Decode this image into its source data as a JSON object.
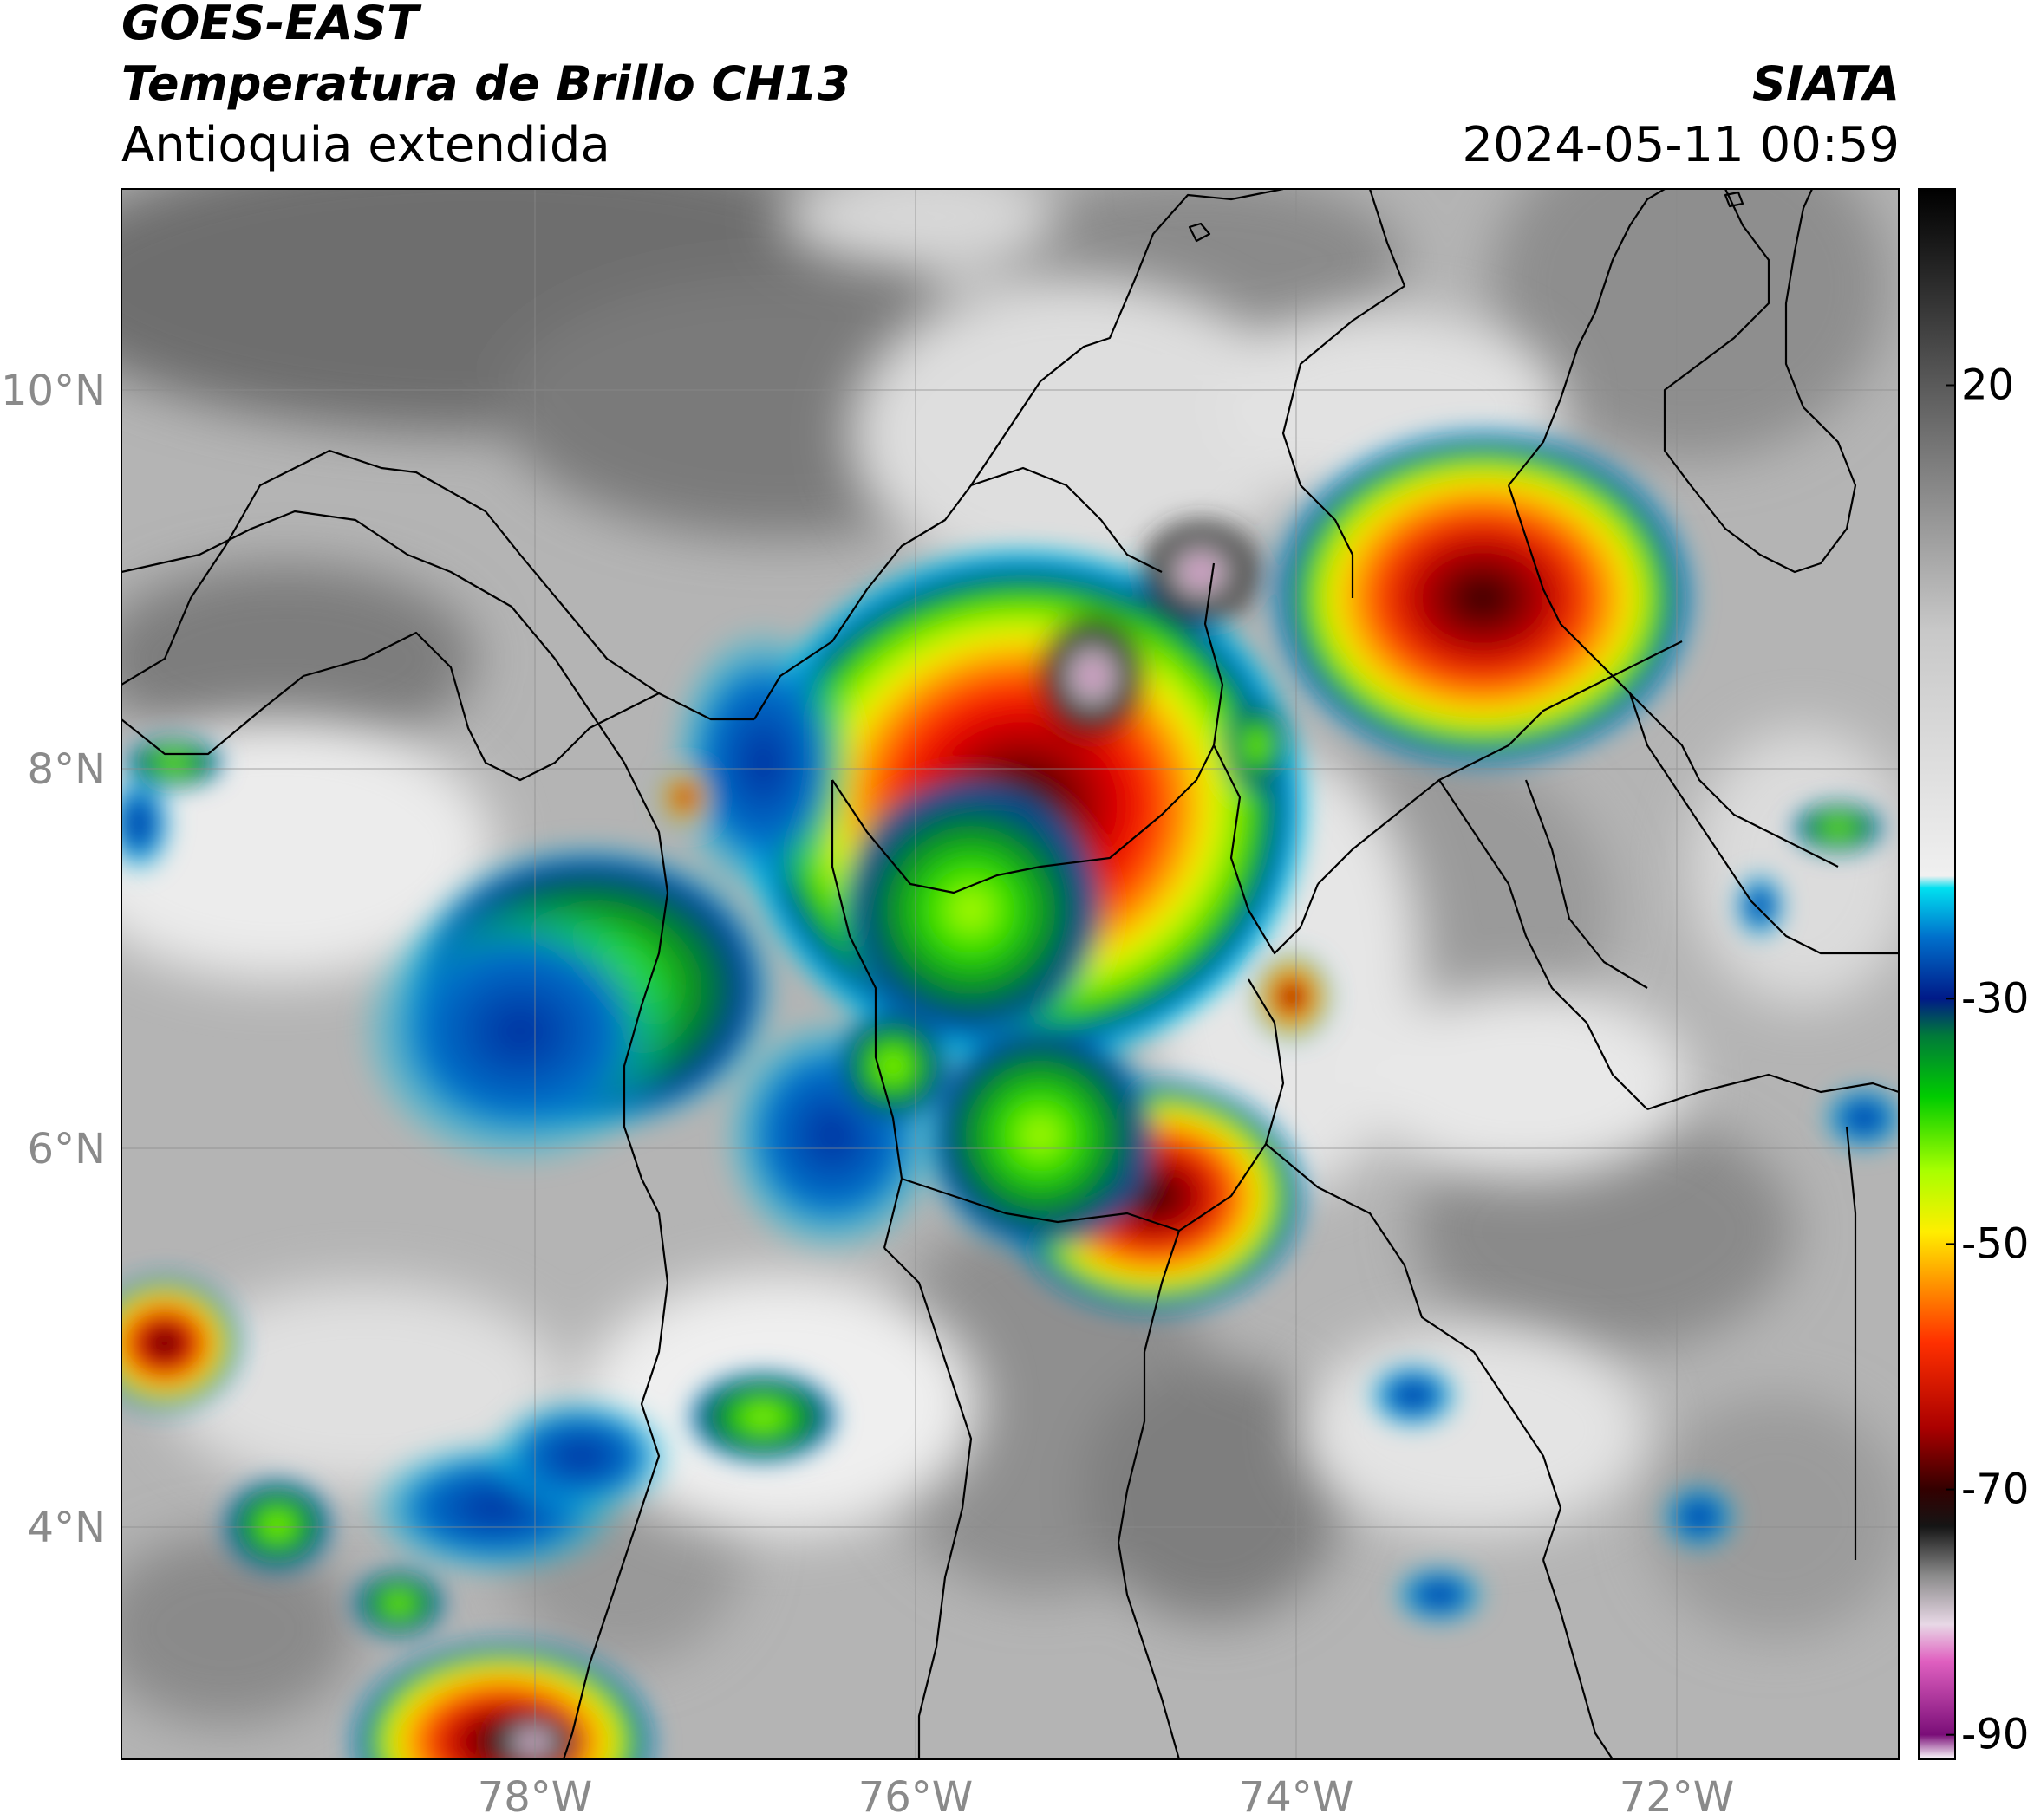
{
  "header": {
    "satellite": "GOES-EAST",
    "product": "Temperatura de Brillo CH13",
    "region": "Antioquia extendida",
    "brand": "SIATA",
    "datetime": "2024-05-11 00:59"
  },
  "map": {
    "lat_labels": [
      "10°N",
      "8°N",
      "6°N",
      "4°N"
    ],
    "lon_labels": [
      "78°W",
      "76°W",
      "74°W",
      "72°W"
    ],
    "lat_range": [
      2.6,
      11.1
    ],
    "lon_range": [
      -80.2,
      -70.85
    ]
  },
  "colorbar": {
    "ticks": [
      "20",
      "-30",
      "-50",
      "-70",
      "-90"
    ],
    "range": [
      -92,
      36
    ],
    "stops": [
      {
        "t": -92,
        "color": "#ffffff"
      },
      {
        "t": -90,
        "color": "#7a0e78"
      },
      {
        "t": -84,
        "color": "#e060c0"
      },
      {
        "t": -81,
        "color": "#e8d8e6"
      },
      {
        "t": -77,
        "color": "#8a8a8a"
      },
      {
        "t": -73,
        "color": "#151515"
      },
      {
        "t": -70,
        "color": "#330000"
      },
      {
        "t": -65,
        "color": "#aa0000"
      },
      {
        "t": -58,
        "color": "#ff3000"
      },
      {
        "t": -53,
        "color": "#ff9900"
      },
      {
        "t": -49,
        "color": "#ffee00"
      },
      {
        "t": -44,
        "color": "#a8ff00"
      },
      {
        "t": -38,
        "color": "#00cc00"
      },
      {
        "t": -33,
        "color": "#007a3a"
      },
      {
        "t": -30,
        "color": "#001a88"
      },
      {
        "t": -25,
        "color": "#0070cc"
      },
      {
        "t": -21,
        "color": "#00e0f0"
      },
      {
        "t": -20,
        "color": "#f0f0f0"
      },
      {
        "t": 0,
        "color": "#c8c8c8"
      },
      {
        "t": 20,
        "color": "#5a5a5a"
      },
      {
        "t": 36,
        "color": "#000000"
      }
    ]
  }
}
